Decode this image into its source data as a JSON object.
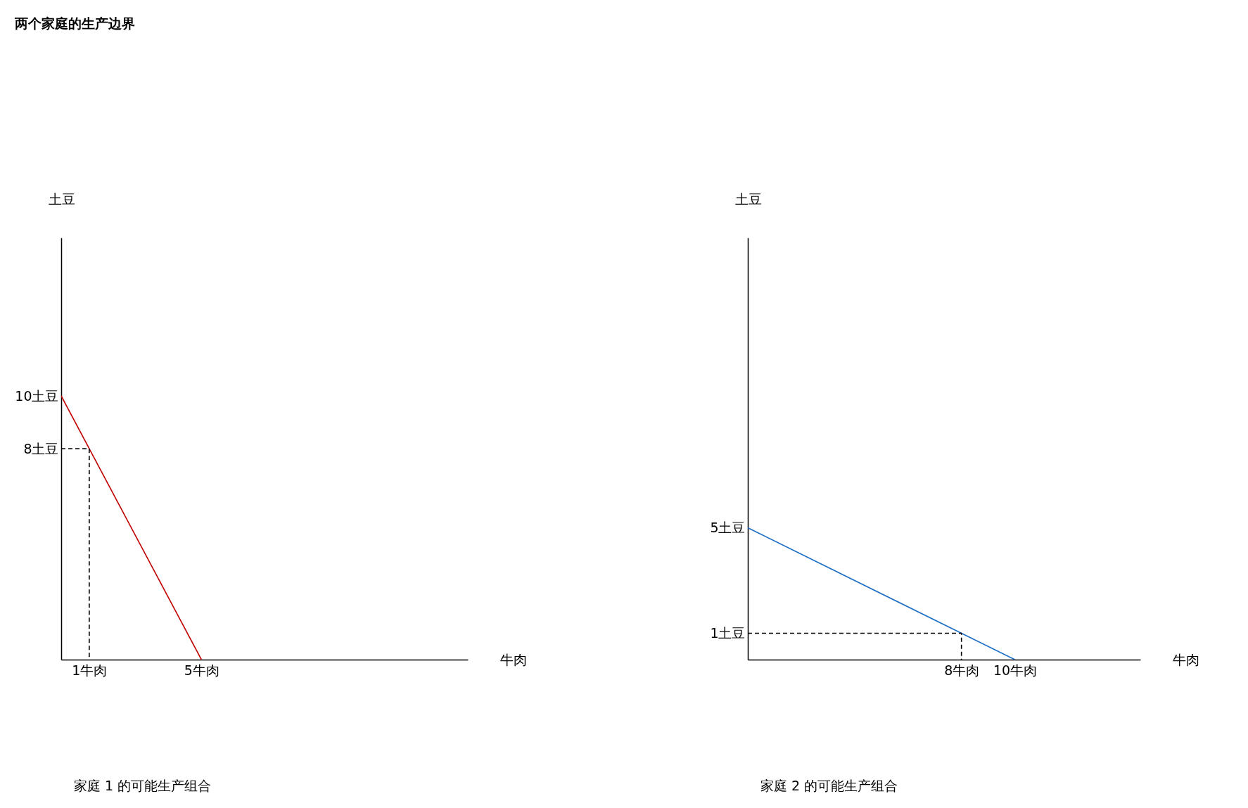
{
  "chart_data": [
    {
      "type": "line",
      "title": "两个家庭的生产边界",
      "xlabel": "牛肉",
      "ylabel": "土豆",
      "xlim": [
        0,
        14.5
      ],
      "ylim": [
        0,
        16
      ],
      "xticks": [
        {
          "value": 1,
          "label": "1牛肉"
        },
        {
          "value": 5,
          "label": "5牛肉"
        }
      ],
      "yticks": [
        {
          "value": 8,
          "label": "8土豆"
        },
        {
          "value": 10,
          "label": "10土豆"
        }
      ],
      "annotations": [
        "家庭 1 的可能生产组合"
      ],
      "series": [
        {
          "color": "#c00000",
          "line_style": "solid",
          "x": [
            0,
            5
          ],
          "values": [
            10,
            0
          ]
        },
        {
          "color": "#000000",
          "line_style": "dashed",
          "x": [
            0,
            1,
            1
          ],
          "values": [
            8,
            8,
            0
          ]
        }
      ]
    },
    {
      "type": "line",
      "xlabel": "牛肉",
      "ylabel": "土豆",
      "xlim": [
        0,
        14.7
      ],
      "ylim": [
        0,
        16
      ],
      "xticks": [
        {
          "value": 8,
          "label": "8牛肉"
        },
        {
          "value": 10,
          "label": "10牛肉"
        }
      ],
      "yticks": [
        {
          "value": 1,
          "label": "1土豆"
        },
        {
          "value": 5,
          "label": "5土豆"
        }
      ],
      "annotations": [
        "家庭 2 的可能生产组合"
      ],
      "series": [
        {
          "color": "#1f6fc5",
          "line_style": "solid",
          "x": [
            0,
            10
          ],
          "values": [
            5,
            0
          ]
        },
        {
          "color": "#000000",
          "line_style": "dashed",
          "x": [
            0,
            8,
            8
          ],
          "values": [
            1,
            1,
            0
          ]
        }
      ]
    }
  ]
}
